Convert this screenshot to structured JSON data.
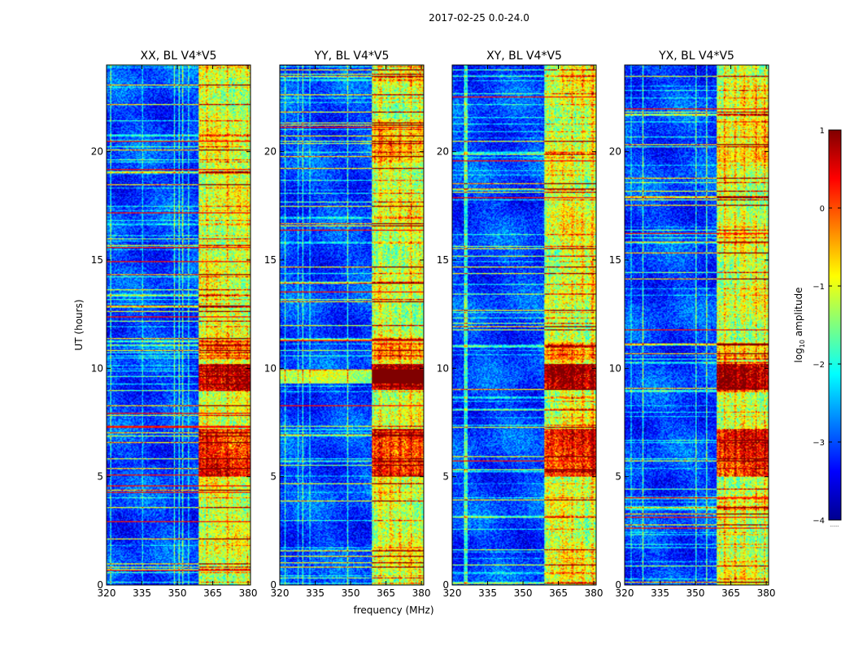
{
  "figure": {
    "suptitle": "2017-02-25 0.0-24.0",
    "xlabel": "frequency (MHz)",
    "ylabel": "UT (hours)"
  },
  "colorbar": {
    "label_prefix": "log",
    "label_sub": "10",
    "label_suffix": " amplitude",
    "ticks": [
      1,
      0,
      -1,
      -2,
      -3,
      -4
    ],
    "tick_labels": [
      "1",
      "0",
      "−1",
      "−2",
      "−3",
      "−4"
    ],
    "range": [
      -4,
      1
    ],
    "colormap": "jet",
    "extra_mark": "......"
  },
  "chart_data": [
    {
      "type": "heatmap",
      "title": "XX, BL V4*V5",
      "xlabel": "frequency (MHz)",
      "ylabel": "UT (hours)",
      "xlim": [
        320,
        381
      ],
      "ylim": [
        0,
        24
      ],
      "xticks": [
        320,
        335,
        350,
        365,
        380
      ],
      "xtick_labels": [
        "320",
        "335",
        "350",
        "365",
        "380"
      ],
      "yticks": [
        0,
        5,
        10,
        15,
        20
      ],
      "ytick_labels": [
        "0",
        "5",
        "10",
        "15",
        "20"
      ],
      "description_of_values": "log10 amplitude per (frequency, time); background around -3, strong RFI band 359-381 MHz around -1 to 0.5, hot spots near 9.5 h and 5-7 h reaching about 1"
    },
    {
      "type": "heatmap",
      "title": "YY, BL V4*V5",
      "xlabel": "frequency (MHz)",
      "ylabel": "",
      "xlim": [
        320,
        381
      ],
      "ylim": [
        0,
        24
      ],
      "xticks": [
        320,
        335,
        350,
        365,
        380
      ],
      "xtick_labels": [
        "320",
        "335",
        "350",
        "365",
        "380"
      ],
      "yticks": [
        0,
        5,
        10,
        15,
        20
      ],
      "ytick_labels": [
        "0",
        "5",
        "10",
        "15",
        "20"
      ],
      "description_of_values": "log10 amplitude per (frequency, time); broadband hot band across all frequencies near 9.5 h"
    },
    {
      "type": "heatmap",
      "title": "XY, BL V4*V5",
      "xlabel": "",
      "ylabel": "",
      "xlim": [
        320,
        381
      ],
      "ylim": [
        0,
        24
      ],
      "xticks": [
        320,
        335,
        350,
        365,
        380
      ],
      "xtick_labels": [
        "320",
        "335",
        "350",
        "365",
        "380"
      ],
      "yticks": [
        0,
        5,
        10,
        15,
        20
      ],
      "ytick_labels": [
        "0",
        "5",
        "10",
        "15",
        "20"
      ],
      "description_of_values": "log10 amplitude per (frequency, time)"
    },
    {
      "type": "heatmap",
      "title": "YX, BL V4*V5",
      "xlabel": "",
      "ylabel": "",
      "xlim": [
        320,
        381
      ],
      "ylim": [
        0,
        24
      ],
      "xticks": [
        320,
        335,
        350,
        365,
        380
      ],
      "xtick_labels": [
        "320",
        "335",
        "350",
        "365",
        "380"
      ],
      "yticks": [
        0,
        5,
        10,
        15,
        20
      ],
      "ytick_labels": [
        "0",
        "5",
        "10",
        "15",
        "20"
      ],
      "description_of_values": "log10 amplitude per (frequency, time)"
    }
  ]
}
